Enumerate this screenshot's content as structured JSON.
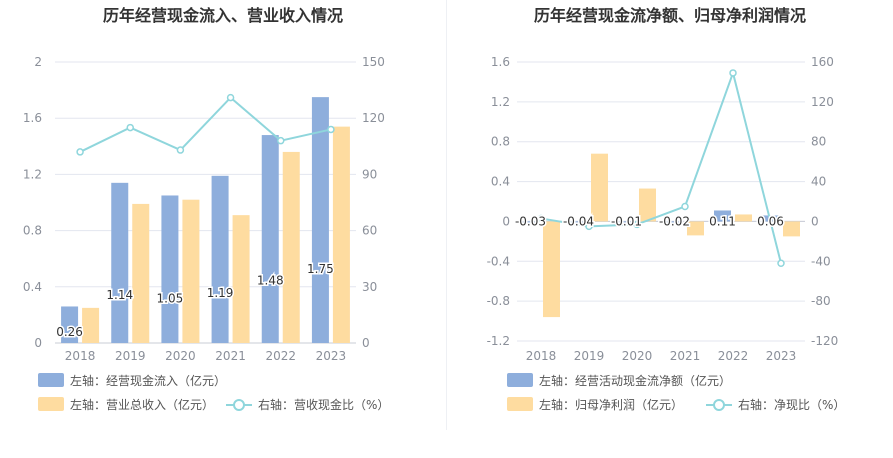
{
  "colors": {
    "bar_primary": "#8eaedc",
    "bar_secondary": "#fedca0",
    "line": "#8fd6dc",
    "grid": "#e3e6ef",
    "axis_text": "#8a8f99",
    "title": "#333333",
    "label_text": "#333333",
    "legend_text": "#555555"
  },
  "chart_data": [
    {
      "type": "bar",
      "title": "历年经营现金流入、营业收入情况",
      "categories": [
        "2018",
        "2019",
        "2020",
        "2021",
        "2022",
        "2023"
      ],
      "y_left": {
        "ylim": [
          0,
          2
        ],
        "ticks": [
          "0",
          "0.4",
          "0.8",
          "1.2",
          "1.6",
          "2"
        ]
      },
      "y_right": {
        "ylim": [
          0,
          150
        ],
        "ticks": [
          "0",
          "30",
          "60",
          "90",
          "120",
          "150"
        ]
      },
      "series": [
        {
          "name": "左轴：经营现金流入（亿元）",
          "axis": "left",
          "kind": "bar",
          "values": [
            0.26,
            1.14,
            1.05,
            1.19,
            1.48,
            1.75
          ],
          "labels": [
            "0.26",
            "1.14",
            "1.05",
            "1.19",
            "1.48",
            "1.75"
          ]
        },
        {
          "name": "左轴：营业总收入（亿元）",
          "axis": "left",
          "kind": "bar",
          "values": [
            0.25,
            0.99,
            1.02,
            0.91,
            1.36,
            1.54
          ]
        },
        {
          "name": "右轴：营收现金比（%）",
          "axis": "right",
          "kind": "line",
          "values": [
            102,
            115,
            103,
            131,
            108,
            114
          ]
        }
      ],
      "grid": true,
      "legend_position": "bottom"
    },
    {
      "type": "bar",
      "title": "历年经营现金流净额、归母净利润情况",
      "categories": [
        "2018",
        "2019",
        "2020",
        "2021",
        "2022",
        "2023"
      ],
      "y_left": {
        "ylim": [
          -1.2,
          1.6
        ],
        "ticks": [
          "-1.2",
          "-0.8",
          "-0.4",
          "0",
          "0.4",
          "0.8",
          "1.2",
          "1.6"
        ]
      },
      "y_right": {
        "ylim": [
          -120,
          160
        ],
        "ticks": [
          "-120",
          "-80",
          "-40",
          "0",
          "40",
          "80",
          "120",
          "160"
        ]
      },
      "series": [
        {
          "name": "左轴：经营活动现金流净额（亿元）",
          "axis": "left",
          "kind": "bar",
          "values": [
            -0.03,
            -0.04,
            -0.01,
            -0.02,
            0.11,
            0.06
          ],
          "labels": [
            "-0.03",
            "-0.04",
            "-0.01",
            "-0.02",
            "0.11",
            "0.06"
          ]
        },
        {
          "name": "左轴：归母净利润（亿元）",
          "axis": "left",
          "kind": "bar",
          "values": [
            -0.96,
            0.68,
            0.33,
            -0.14,
            0.07,
            -0.15
          ]
        },
        {
          "name": "右轴：净现比（%）",
          "axis": "right",
          "kind": "line",
          "values": [
            3,
            -5,
            -3,
            15,
            149,
            -42
          ]
        }
      ],
      "grid": true,
      "legend_position": "bottom"
    }
  ]
}
